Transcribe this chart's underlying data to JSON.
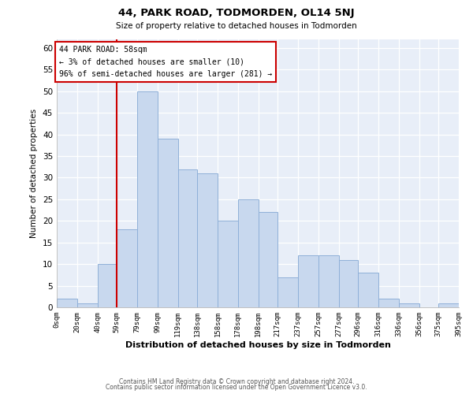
{
  "title1": "44, PARK ROAD, TODMORDEN, OL14 5NJ",
  "title2": "Size of property relative to detached houses in Todmorden",
  "xlabel": "Distribution of detached houses by size in Todmorden",
  "ylabel": "Number of detached properties",
  "bar_color": "#c8d8ee",
  "bar_edge_color": "#8fb0d8",
  "vline_x": 59,
  "vline_color": "#cc0000",
  "annotation_title": "44 PARK ROAD: 58sqm",
  "annotation_line1": "← 3% of detached houses are smaller (10)",
  "annotation_line2": "96% of semi-detached houses are larger (281) →",
  "annotation_box_color": "#ffffff",
  "annotation_box_edge": "#cc0000",
  "bins": [
    0,
    20,
    40,
    59,
    79,
    99,
    119,
    138,
    158,
    178,
    198,
    217,
    237,
    257,
    277,
    296,
    316,
    336,
    356,
    375,
    395
  ],
  "counts": [
    2,
    1,
    10,
    18,
    50,
    39,
    32,
    31,
    20,
    25,
    22,
    7,
    12,
    12,
    11,
    8,
    2,
    1,
    0,
    1,
    1
  ],
  "tick_labels": [
    "0sqm",
    "20sqm",
    "40sqm",
    "59sqm",
    "79sqm",
    "99sqm",
    "119sqm",
    "138sqm",
    "158sqm",
    "178sqm",
    "198sqm",
    "217sqm",
    "237sqm",
    "257sqm",
    "277sqm",
    "296sqm",
    "316sqm",
    "336sqm",
    "356sqm",
    "375sqm",
    "395sqm"
  ],
  "ylim": [
    0,
    62
  ],
  "yticks": [
    0,
    5,
    10,
    15,
    20,
    25,
    30,
    35,
    40,
    45,
    50,
    55,
    60
  ],
  "footer1": "Contains HM Land Registry data © Crown copyright and database right 2024.",
  "footer2": "Contains public sector information licensed under the Open Government Licence v3.0.",
  "background_color": "#ffffff",
  "plot_bg_color": "#e8eef8",
  "grid_color": "#ffffff"
}
